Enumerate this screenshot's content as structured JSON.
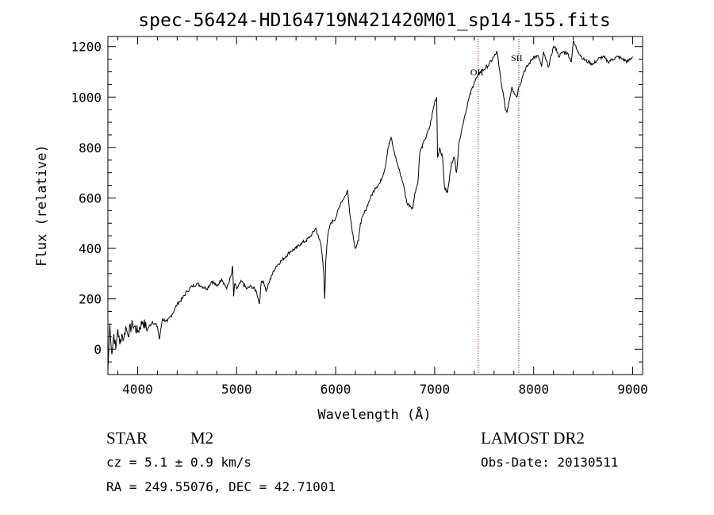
{
  "chart_data": {
    "type": "line",
    "title": "spec-56424-HD164719N421420M01_sp14-155.fits",
    "xlabel": "Wavelength (Å)",
    "ylabel": "Flux (relative)",
    "xlim": [
      3700,
      9100
    ],
    "ylim": [
      -100,
      1240
    ],
    "xticks": [
      4000,
      5000,
      6000,
      7000,
      8000,
      9000
    ],
    "yticks": [
      0,
      200,
      400,
      600,
      800,
      1000,
      1200
    ],
    "grid": false,
    "series": [
      {
        "x": [
          3700,
          3720,
          3740,
          3760,
          3780,
          3800,
          3820,
          3840,
          3860,
          3880,
          3900,
          3950,
          4000,
          4050,
          4100,
          4150,
          4200,
          4220,
          4250,
          4300,
          4350,
          4400,
          4450,
          4500,
          4550,
          4600,
          4650,
          4700,
          4750,
          4800,
          4850,
          4900,
          4950,
          4960,
          4970,
          4980,
          5000,
          5050,
          5100,
          5150,
          5200,
          5230,
          5250,
          5270,
          5300,
          5350,
          5400,
          5450,
          5500,
          5550,
          5600,
          5650,
          5700,
          5750,
          5800,
          5830,
          5850,
          5870,
          5880,
          5890,
          5900,
          5920,
          5950,
          6000,
          6050,
          6100,
          6120,
          6150,
          6180,
          6200,
          6230,
          6250,
          6300,
          6350,
          6400,
          6450,
          6500,
          6530,
          6560,
          6580,
          6620,
          6650,
          6680,
          6700,
          6720,
          6750,
          6780,
          6800,
          6830,
          6850,
          6900,
          6950,
          7000,
          7020,
          7030,
          7050,
          7080,
          7100,
          7130,
          7150,
          7170,
          7200,
          7220,
          7250,
          7300,
          7350,
          7400,
          7430,
          7460,
          7500,
          7550,
          7600,
          7630,
          7650,
          7670,
          7690,
          7710,
          7730,
          7750,
          7780,
          7800,
          7830,
          7850,
          7880,
          7900,
          7950,
          8000,
          8050,
          8080,
          8100,
          8120,
          8150,
          8200,
          8230,
          8250,
          8300,
          8350,
          8380,
          8400,
          8450,
          8500,
          8550,
          8600,
          8650,
          8700,
          8750,
          8800,
          8850,
          8900,
          8950,
          9000
        ],
        "values": [
          -80,
          100,
          -20,
          60,
          0,
          80,
          20,
          60,
          40,
          90,
          60,
          100,
          70,
          110,
          80,
          110,
          90,
          40,
          120,
          110,
          140,
          180,
          200,
          230,
          250,
          260,
          250,
          240,
          270,
          250,
          280,
          240,
          300,
          330,
          210,
          260,
          240,
          270,
          240,
          250,
          230,
          180,
          270,
          270,
          230,
          290,
          330,
          350,
          370,
          390,
          400,
          420,
          430,
          450,
          480,
          440,
          420,
          350,
          300,
          200,
          350,
          450,
          500,
          520,
          580,
          610,
          630,
          520,
          440,
          400,
          430,
          500,
          550,
          600,
          640,
          660,
          720,
          800,
          840,
          800,
          740,
          700,
          660,
          620,
          580,
          570,
          560,
          620,
          660,
          780,
          830,
          880,
          980,
          1000,
          760,
          800,
          760,
          640,
          620,
          680,
          740,
          760,
          700,
          830,
          920,
          1000,
          1060,
          1080,
          1100,
          1110,
          1130,
          1160,
          1180,
          1120,
          1060,
          1020,
          960,
          940,
          980,
          1040,
          1020,
          1000,
          1040,
          1070,
          1100,
          1130,
          1160,
          1160,
          1120,
          1180,
          1150,
          1120,
          1200,
          1190,
          1160,
          1180,
          1170,
          1140,
          1220,
          1180,
          1150,
          1140,
          1130,
          1150,
          1160,
          1140,
          1150,
          1160,
          1150,
          1140,
          1160
        ]
      }
    ],
    "lines": [
      {
        "x": 7440,
        "label": "OII"
      },
      {
        "x": 7850,
        "label": "SII"
      }
    ]
  },
  "info": {
    "object_class": "STAR",
    "subclass": "M2",
    "cz": "cz = 5.1 ± 0.9 km/s",
    "coords": "RA = 249.55076, DEC =  42.71001",
    "survey": "LAMOST DR2",
    "obs_date": "Obs-Date: 20130511"
  }
}
